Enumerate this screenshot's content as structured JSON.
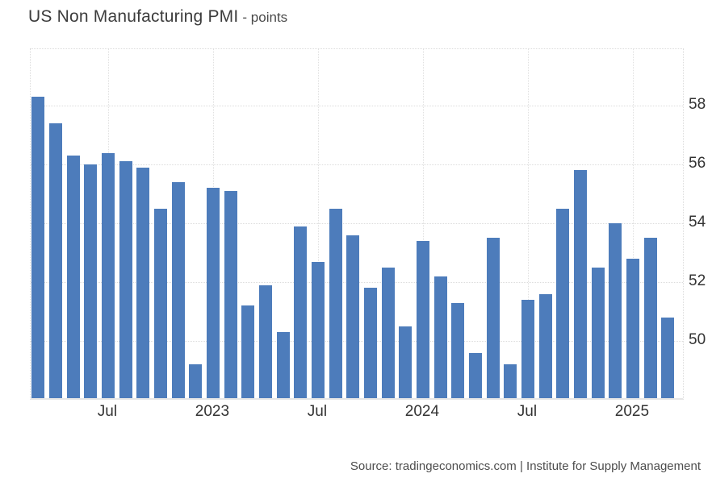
{
  "header": {
    "title": "US Non Manufacturing PMI",
    "subtitle": "- points"
  },
  "footer": {
    "source": "Source: tradingeconomics.com | Institute for Supply Management"
  },
  "chart_data": {
    "type": "bar",
    "title": "US Non Manufacturing PMI",
    "ylabel": "points",
    "xlabel": "",
    "legend_position": "none",
    "grid": "dotted",
    "bar_color": "#4d7cbb",
    "categories": [
      "2022-03",
      "2022-04",
      "2022-05",
      "2022-06",
      "2022-07",
      "2022-08",
      "2022-09",
      "2022-10",
      "2022-11",
      "2022-12",
      "2023-01",
      "2023-02",
      "2023-03",
      "2023-04",
      "2023-05",
      "2023-06",
      "2023-07",
      "2023-08",
      "2023-09",
      "2023-10",
      "2023-11",
      "2023-12",
      "2024-01",
      "2024-02",
      "2024-03",
      "2024-04",
      "2024-05",
      "2024-06",
      "2024-07",
      "2024-08",
      "2024-09",
      "2024-10",
      "2024-11",
      "2024-12",
      "2025-01",
      "2025-02",
      "2025-03"
    ],
    "values": [
      58.3,
      57.4,
      56.3,
      56.0,
      56.4,
      56.1,
      55.9,
      54.5,
      55.4,
      49.2,
      55.2,
      55.1,
      51.2,
      51.9,
      50.3,
      53.9,
      52.7,
      54.5,
      53.6,
      51.8,
      52.5,
      50.5,
      53.4,
      52.2,
      51.3,
      49.6,
      53.5,
      49.2,
      51.4,
      51.6,
      54.5,
      55.8,
      52.5,
      54.0,
      52.8,
      53.5,
      50.8
    ],
    "yticks": [
      50,
      52,
      54,
      56,
      58
    ],
    "ylim": [
      48.06,
      59.92
    ],
    "xticks": [
      {
        "index": 4,
        "label": "Jul"
      },
      {
        "index": 10,
        "label": "2023"
      },
      {
        "index": 16,
        "label": "Jul"
      },
      {
        "index": 22,
        "label": "2024"
      },
      {
        "index": 28,
        "label": "Jul"
      },
      {
        "index": 34,
        "label": "2025"
      }
    ]
  }
}
